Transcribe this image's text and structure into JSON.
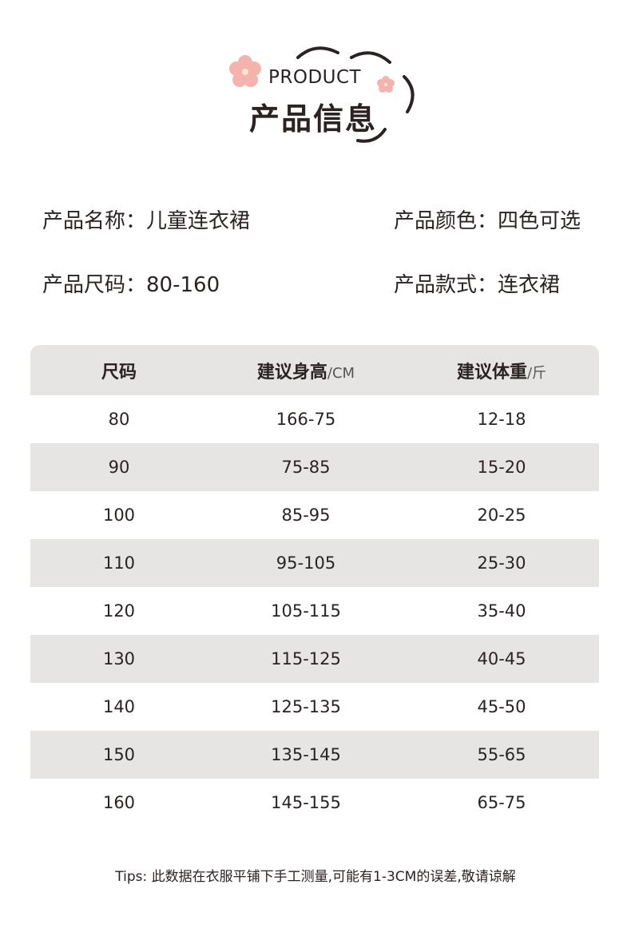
{
  "logo": {
    "english": "PRODUCT",
    "title": "产品信息",
    "flower_color": "#f4b3ad"
  },
  "info": [
    {
      "label": "产品名称：",
      "value": "儿童连衣裙"
    },
    {
      "label": "产品颜色：",
      "value": "四色可选"
    },
    {
      "label": "产品尺码：",
      "value": "80-160"
    },
    {
      "label": "产品款式：",
      "value": "连衣裙"
    }
  ],
  "table": {
    "headers": [
      {
        "main": "尺码",
        "unit": ""
      },
      {
        "main": "建议身高",
        "unit": "/CM"
      },
      {
        "main": "建议体重",
        "unit": "/斤"
      }
    ],
    "rows": [
      [
        "80",
        "166-75",
        "12-18"
      ],
      [
        "90",
        "75-85",
        "15-20"
      ],
      [
        "100",
        "85-95",
        "20-25"
      ],
      [
        "110",
        "95-105",
        "25-30"
      ],
      [
        "120",
        "105-115",
        "35-40"
      ],
      [
        "130",
        "115-125",
        "40-45"
      ],
      [
        "140",
        "125-135",
        "45-50"
      ],
      [
        "150",
        "135-145",
        "55-65"
      ],
      [
        "160",
        "145-155",
        "65-75"
      ]
    ]
  },
  "tips": "Tips: 此数据在衣服平铺下手工测量,可能有1-3CM的误差,敬请谅解"
}
